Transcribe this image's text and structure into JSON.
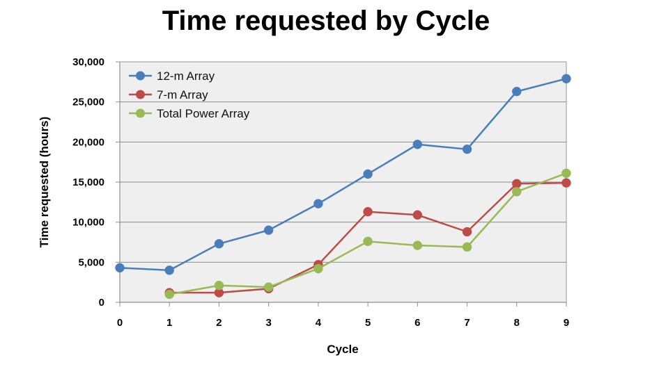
{
  "chart_data": {
    "type": "line",
    "title": "Time requested by Cycle",
    "xlabel": "Cycle",
    "ylabel": "Time requested (hours)",
    "x": [
      0,
      1,
      2,
      3,
      4,
      5,
      6,
      7,
      8,
      9
    ],
    "xlim": [
      0,
      9
    ],
    "ylim": [
      0,
      30000
    ],
    "x_ticks": [
      "0",
      "1",
      "2",
      "3",
      "4",
      "5",
      "6",
      "7",
      "8",
      "9"
    ],
    "y_ticks": [
      {
        "value": 0,
        "label": "0"
      },
      {
        "value": 5000,
        "label": "5,000"
      },
      {
        "value": 10000,
        "label": "10,000"
      },
      {
        "value": 15000,
        "label": "15,000"
      },
      {
        "value": 20000,
        "label": "20,000"
      },
      {
        "value": 25000,
        "label": "25,000"
      },
      {
        "value": 30000,
        "label": "30,000"
      }
    ],
    "grid": "horizontal",
    "legend_position": "top-left",
    "series": [
      {
        "name": "12-m Array",
        "color": "#4a7ebb",
        "values": [
          4300,
          4000,
          7300,
          9000,
          12300,
          16000,
          19700,
          19100,
          26300,
          27900
        ]
      },
      {
        "name": "7-m Array",
        "color": "#be4b48",
        "values": [
          null,
          1200,
          1200,
          1700,
          4700,
          11300,
          10900,
          8800,
          14800,
          14900
        ]
      },
      {
        "name": "Total Power Array",
        "color": "#98b954",
        "values": [
          null,
          1000,
          2100,
          1900,
          4200,
          7600,
          7100,
          6900,
          13800,
          16100
        ]
      }
    ]
  }
}
